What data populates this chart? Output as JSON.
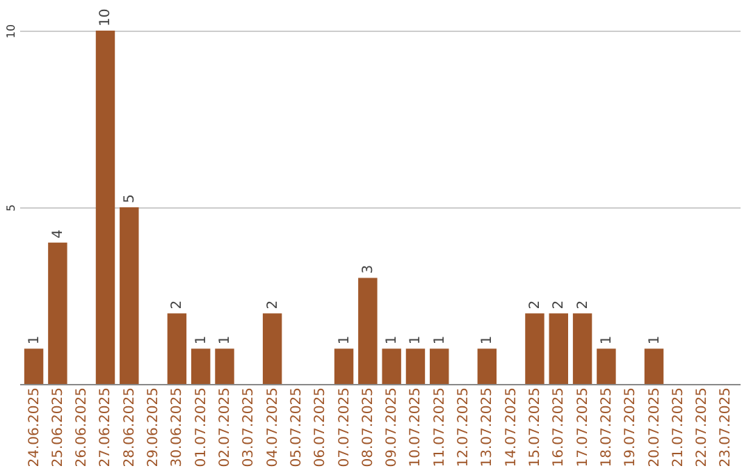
{
  "chart_data": {
    "type": "bar",
    "categories": [
      "24.06.2025",
      "25.06.2025",
      "26.06.2025",
      "27.06.2025",
      "28.06.2025",
      "29.06.2025",
      "30.06.2025",
      "01.07.2025",
      "02.07.2025",
      "03.07.2025",
      "04.07.2025",
      "05.07.2025",
      "06.07.2025",
      "07.07.2025",
      "08.07.2025",
      "09.07.2025",
      "10.07.2025",
      "11.07.2025",
      "12.07.2025",
      "13.07.2025",
      "14.07.2025",
      "15.07.2025",
      "16.07.2025",
      "17.07.2025",
      "18.07.2025",
      "19.07.2025",
      "20.07.2025",
      "21.07.2025",
      "22.07.2025",
      "23.07.2025"
    ],
    "values": [
      1,
      4,
      0,
      10,
      5,
      0,
      2,
      1,
      1,
      0,
      2,
      0,
      0,
      1,
      3,
      1,
      1,
      1,
      0,
      1,
      0,
      2,
      2,
      2,
      1,
      0,
      1,
      0,
      0,
      0
    ],
    "value_labels": [
      "1",
      "4",
      null,
      "10",
      "5",
      null,
      "2",
      "1",
      "1",
      null,
      "2",
      null,
      null,
      "1",
      "3",
      "1",
      "1",
      "1",
      null,
      "1",
      null,
      "2",
      "2",
      "2",
      "1",
      null,
      "1",
      null,
      null,
      null
    ],
    "color": "#a0572a",
    "ylim": [
      0,
      10
    ],
    "yticks": [
      {
        "value": 0,
        "label": null
      },
      5,
      10
    ],
    "grid": "y"
  }
}
